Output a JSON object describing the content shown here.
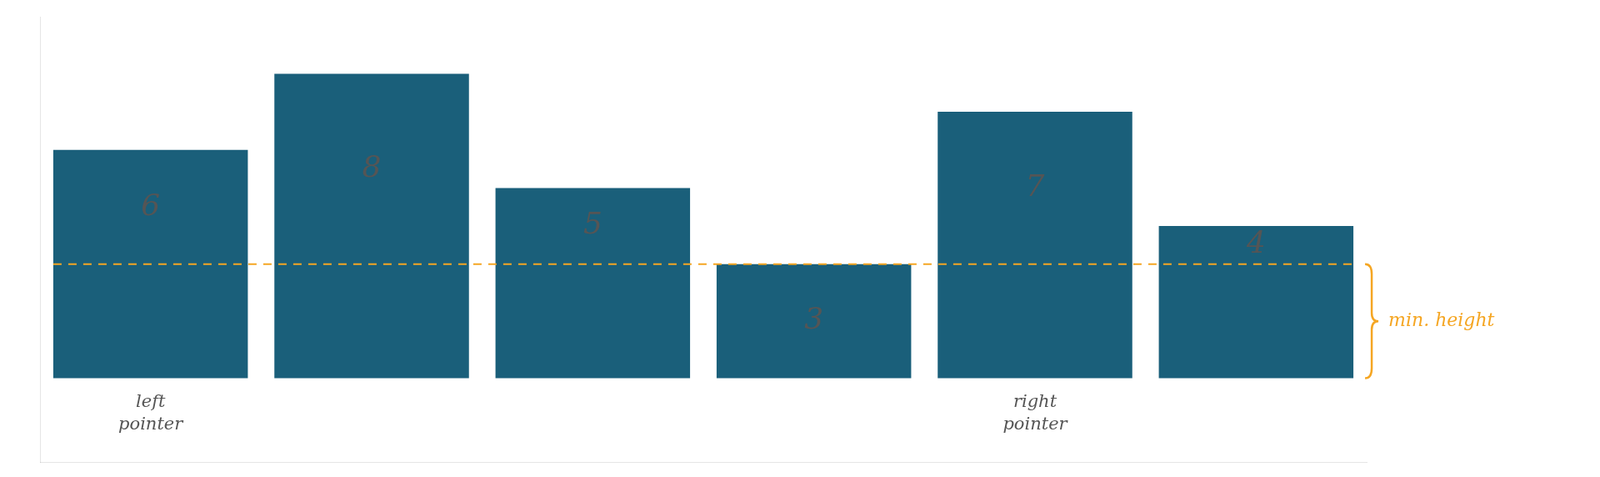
{
  "chart_data": {
    "type": "bar",
    "categories": [
      null,
      null,
      null,
      null,
      null,
      null
    ],
    "values": [
      6,
      8,
      5,
      3,
      7,
      4
    ],
    "color": "#1a5f7a",
    "ylim": [
      -2.2,
      9.5
    ],
    "tick_labels": false,
    "grid": false,
    "data_labels": true,
    "annotations": [
      {
        "text": "left\npointer",
        "at": 0
      },
      {
        "text": "right\npointer",
        "at": 4
      },
      {
        "text": "min. height",
        "y": 3,
        "line_style": "dashed",
        "color": "#f5a623"
      }
    ]
  }
}
